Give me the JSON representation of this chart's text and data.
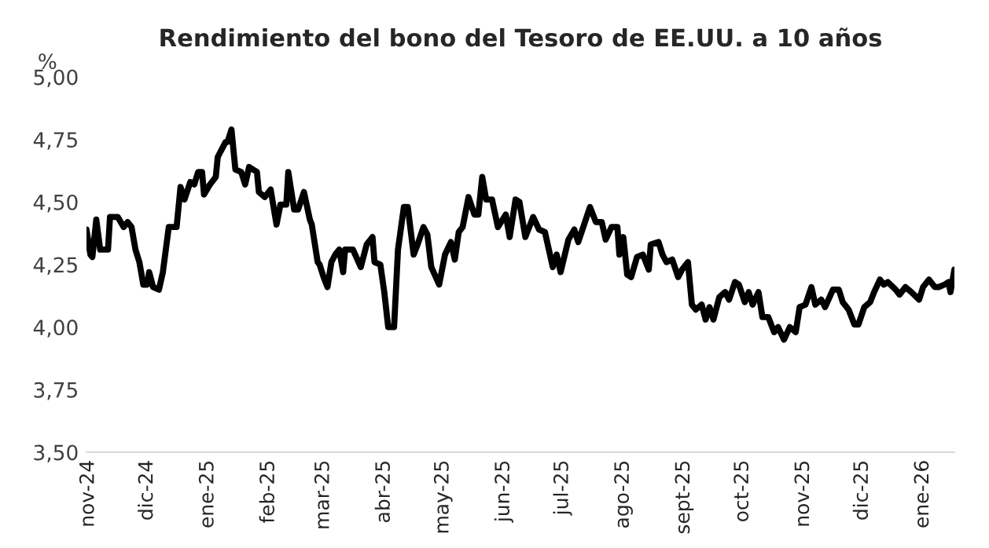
{
  "chart_data": {
    "type": "line",
    "title": "Rendimiento del bono del Tesoro de EE.UU. a 10 años",
    "ylabel": "%",
    "x": [
      "2024-10-31",
      "2024-11-02",
      "2024-11-03",
      "2024-11-05",
      "2024-11-07",
      "2024-11-11",
      "2024-11-12",
      "2024-11-16",
      "2024-11-19",
      "2024-11-21",
      "2024-11-23",
      "2024-11-25",
      "2024-11-27",
      "2024-11-29",
      "2024-12-01",
      "2024-12-02",
      "2024-12-04",
      "2024-12-07",
      "2024-12-09",
      "2024-12-12",
      "2024-12-16",
      "2024-12-18",
      "2024-12-20",
      "2024-12-23",
      "2024-12-25",
      "2024-12-27",
      "2024-12-29",
      "2024-12-30",
      "2025-01-02",
      "2025-01-05",
      "2025-01-06",
      "2025-01-10",
      "2025-01-11",
      "2025-01-13",
      "2025-01-15",
      "2025-01-18",
      "2025-01-20",
      "2025-01-22",
      "2025-01-26",
      "2025-01-27",
      "2025-01-30",
      "2025-02-02",
      "2025-02-05",
      "2025-02-07",
      "2025-02-10",
      "2025-02-11",
      "2025-02-14",
      "2025-02-16",
      "2025-02-19",
      "2025-02-22",
      "2025-02-23",
      "2025-02-26",
      "2025-02-27",
      "2025-03-01",
      "2025-03-03",
      "2025-03-05",
      "2025-03-07",
      "2025-03-09",
      "2025-03-11",
      "2025-03-12",
      "2025-03-16",
      "2025-03-20",
      "2025-03-23",
      "2025-03-26",
      "2025-03-27",
      "2025-03-30",
      "2025-04-01",
      "2025-04-03",
      "2025-04-06",
      "2025-04-08",
      "2025-04-11",
      "2025-04-13",
      "2025-04-16",
      "2025-04-18",
      "2025-04-21",
      "2025-04-23",
      "2025-04-25",
      "2025-04-29",
      "2025-05-02",
      "2025-05-05",
      "2025-05-07",
      "2025-05-09",
      "2025-05-11",
      "2025-05-14",
      "2025-05-17",
      "2025-05-19",
      "2025-05-21",
      "2025-05-23",
      "2025-05-26",
      "2025-05-29",
      "2025-06-02",
      "2025-06-04",
      "2025-06-07",
      "2025-06-09",
      "2025-06-12",
      "2025-06-16",
      "2025-06-19",
      "2025-06-22",
      "2025-06-26",
      "2025-06-28",
      "2025-06-30",
      "2025-07-04",
      "2025-07-07",
      "2025-07-09",
      "2025-07-12",
      "2025-07-15",
      "2025-07-18",
      "2025-07-21",
      "2025-07-23",
      "2025-07-26",
      "2025-07-29",
      "2025-07-30",
      "2025-08-01",
      "2025-08-03",
      "2025-08-05",
      "2025-08-08",
      "2025-08-11",
      "2025-08-14",
      "2025-08-15",
      "2025-08-19",
      "2025-08-21",
      "2025-08-23",
      "2025-08-26",
      "2025-08-29",
      "2025-08-31",
      "2025-09-03",
      "2025-09-05",
      "2025-09-07",
      "2025-09-10",
      "2025-09-12",
      "2025-09-14",
      "2025-09-16",
      "2025-09-19",
      "2025-09-22",
      "2025-09-24",
      "2025-09-27",
      "2025-09-29",
      "2025-10-02",
      "2025-10-04",
      "2025-10-06",
      "2025-10-09",
      "2025-10-11",
      "2025-10-14",
      "2025-10-17",
      "2025-10-19",
      "2025-10-22",
      "2025-10-25",
      "2025-10-28",
      "2025-10-30",
      "2025-11-02",
      "2025-11-05",
      "2025-11-07",
      "2025-11-10",
      "2025-11-12",
      "2025-11-16",
      "2025-11-19",
      "2025-11-21",
      "2025-11-24",
      "2025-11-27",
      "2025-11-29",
      "2025-12-02",
      "2025-12-05",
      "2025-12-07",
      "2025-12-10",
      "2025-12-12",
      "2025-12-14",
      "2025-12-18",
      "2025-12-20",
      "2025-12-23",
      "2025-12-26",
      "2025-12-30",
      "2026-01-01",
      "2026-01-04",
      "2026-01-07",
      "2026-01-09",
      "2026-01-12",
      "2026-01-14",
      "2026-01-15",
      "2026-01-17"
    ],
    "series": [
      {
        "color": "#000000",
        "values": [
          4.39,
          4.29,
          4.28,
          4.43,
          4.31,
          4.31,
          4.44,
          4.44,
          4.4,
          4.42,
          4.4,
          4.31,
          4.26,
          4.17,
          4.17,
          4.22,
          4.16,
          4.15,
          4.22,
          4.4,
          4.4,
          4.56,
          4.51,
          4.58,
          4.57,
          4.62,
          4.62,
          4.53,
          4.57,
          4.6,
          4.68,
          4.74,
          4.74,
          4.79,
          4.63,
          4.62,
          4.57,
          4.64,
          4.62,
          4.54,
          4.52,
          4.55,
          4.41,
          4.49,
          4.49,
          4.62,
          4.47,
          4.47,
          4.54,
          4.43,
          4.41,
          4.26,
          4.25,
          4.2,
          4.16,
          4.26,
          4.29,
          4.31,
          4.22,
          4.31,
          4.31,
          4.24,
          4.33,
          4.36,
          4.26,
          4.25,
          4.14,
          4.0,
          4.0,
          4.31,
          4.48,
          4.48,
          4.29,
          4.33,
          4.4,
          4.37,
          4.24,
          4.17,
          4.29,
          4.34,
          4.27,
          4.38,
          4.4,
          4.52,
          4.45,
          4.45,
          4.6,
          4.51,
          4.51,
          4.4,
          4.45,
          4.36,
          4.51,
          4.5,
          4.36,
          4.44,
          4.39,
          4.38,
          4.24,
          4.29,
          4.22,
          4.35,
          4.39,
          4.34,
          4.41,
          4.48,
          4.42,
          4.42,
          4.35,
          4.4,
          4.4,
          4.29,
          4.36,
          4.21,
          4.2,
          4.28,
          4.29,
          4.23,
          4.33,
          4.34,
          4.29,
          4.26,
          4.27,
          4.2,
          4.23,
          4.26,
          4.09,
          4.07,
          4.09,
          4.03,
          4.08,
          4.03,
          4.12,
          4.14,
          4.11,
          4.18,
          4.17,
          4.1,
          4.14,
          4.09,
          4.14,
          4.04,
          4.04,
          3.98,
          4.0,
          3.95,
          4.0,
          3.98,
          4.08,
          4.09,
          4.16,
          4.09,
          4.11,
          4.08,
          4.15,
          4.15,
          4.1,
          4.07,
          4.01,
          4.01,
          4.08,
          4.1,
          4.14,
          4.19,
          4.17,
          4.18,
          4.15,
          4.13,
          4.16,
          4.14,
          4.11,
          4.16,
          4.19,
          4.16,
          4.16,
          4.17,
          4.18,
          4.14,
          4.23
        ]
      }
    ],
    "xlim": [
      "2024-10-31",
      "2026-01-17"
    ],
    "xticks": [
      {
        "value": "2024-11-01",
        "label": "nov-24"
      },
      {
        "value": "2024-12-01",
        "label": "dic-24"
      },
      {
        "value": "2025-01-01",
        "label": "ene-25"
      },
      {
        "value": "2025-02-01",
        "label": "feb-25"
      },
      {
        "value": "2025-03-01",
        "label": "mar-25"
      },
      {
        "value": "2025-04-01",
        "label": "abr-25"
      },
      {
        "value": "2025-05-01",
        "label": "may-25"
      },
      {
        "value": "2025-06-01",
        "label": "jun-25"
      },
      {
        "value": "2025-07-01",
        "label": "jul-25"
      },
      {
        "value": "2025-08-01",
        "label": "ago-25"
      },
      {
        "value": "2025-09-01",
        "label": "sept-25"
      },
      {
        "value": "2025-10-01",
        "label": "oct-25"
      },
      {
        "value": "2025-11-01",
        "label": "nov-25"
      },
      {
        "value": "2025-12-01",
        "label": "dic-25"
      },
      {
        "value": "2026-01-01",
        "label": "ene-26"
      }
    ],
    "ylim": [
      3.5,
      5.0
    ],
    "yticks": [
      {
        "value": 3.5,
        "label": "3,50"
      },
      {
        "value": 3.75,
        "label": "3,75"
      },
      {
        "value": 4.0,
        "label": "4,00"
      },
      {
        "value": 4.25,
        "label": "4,25"
      },
      {
        "value": 4.5,
        "label": "4,50"
      },
      {
        "value": 4.75,
        "label": "4,75"
      },
      {
        "value": 5.0,
        "label": "5,00"
      }
    ],
    "grid": false,
    "legend": false,
    "marker": "none",
    "line_style": "solid"
  }
}
